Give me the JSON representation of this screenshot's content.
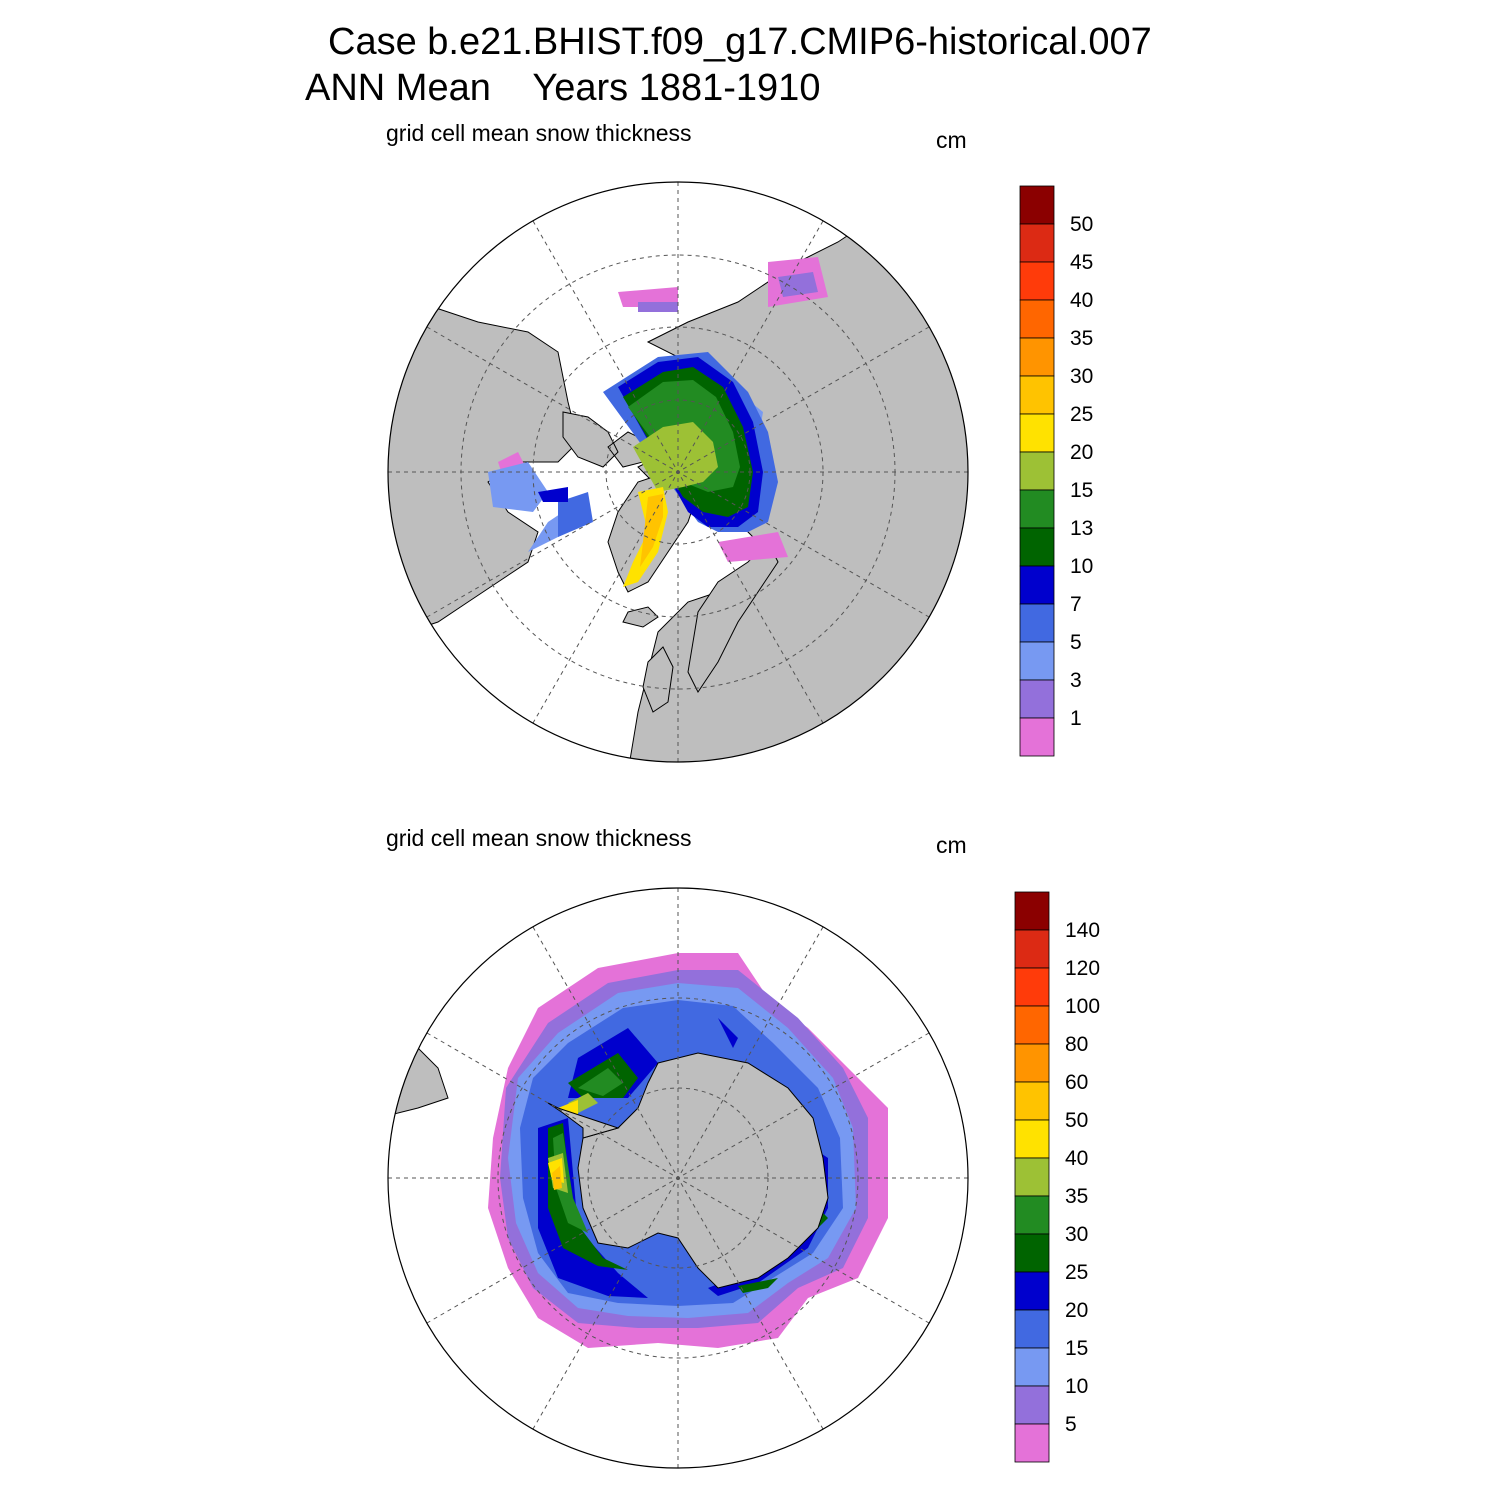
{
  "figure": {
    "title_line1": "Case b.e21.BHIST.f09_g17.CMIP6-historical.007",
    "title_line2": "ANN Mean    Years 1881-1910"
  },
  "colors": {
    "land": "#bebebe",
    "hatch": "#ffffff",
    "graticule": "#555555"
  },
  "panels": [
    {
      "hemisphere": "north",
      "subtitle": "grid cell mean snow thickness",
      "units": "cm",
      "colorbar": {
        "labels": [
          "50",
          "45",
          "40",
          "35",
          "30",
          "25",
          "20",
          "15",
          "13",
          "10",
          "7",
          "5",
          "3",
          "1"
        ],
        "colors": [
          "#8b0000",
          "#dc2a14",
          "#ff3b0a",
          "#ff6600",
          "#ff9400",
          "#ffc300",
          "#ffe200",
          "#9dc135",
          "#228b22",
          "#006400",
          "#0000cd",
          "#4169e1",
          "#7799f2",
          "#9370db",
          "#e472d8"
        ]
      }
    },
    {
      "hemisphere": "south",
      "subtitle": "grid cell mean snow thickness",
      "units": "cm",
      "colorbar": {
        "labels": [
          "140",
          "120",
          "100",
          "80",
          "60",
          "50",
          "40",
          "35",
          "30",
          "25",
          "20",
          "15",
          "10",
          "5"
        ],
        "colors": [
          "#8b0000",
          "#dc2a14",
          "#ff3b0a",
          "#ff6600",
          "#ff9400",
          "#ffc300",
          "#ffe200",
          "#9dc135",
          "#228b22",
          "#006400",
          "#0000cd",
          "#4169e1",
          "#7799f2",
          "#9370db",
          "#e472d8"
        ]
      }
    }
  ]
}
